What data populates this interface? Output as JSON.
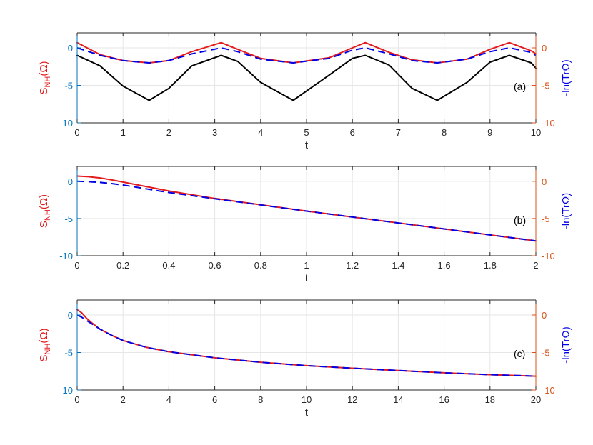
{
  "chart_data": [
    {
      "type": "line",
      "panel_label": "(a)",
      "xlabel": "t",
      "ylabel_left": {
        "main": "S",
        "sub": "NH",
        "tail": "(Ω)"
      },
      "ylabel_right": "-ln(TrΩ)",
      "xlim": [
        0,
        10
      ],
      "ylim": [
        -10,
        2
      ],
      "xticks": [
        "0",
        "1",
        "2",
        "3",
        "4",
        "5",
        "6",
        "7",
        "8",
        "9",
        "10"
      ],
      "xtick_values": [
        0,
        1,
        2,
        3,
        4,
        5,
        6,
        7,
        8,
        9,
        10
      ],
      "yticks_left": [
        "0",
        "-5",
        "-10"
      ],
      "yticks_right": [
        "0",
        "-5",
        "-10"
      ],
      "ytick_values": [
        0,
        -5,
        -10
      ],
      "grid": true,
      "series": [
        {
          "color": "#e41a1c",
          "dash": "solid",
          "x": [
            0,
            0.5,
            1,
            1.57,
            2,
            2.5,
            3.14,
            3.5,
            4,
            4.71,
            5.5,
            6,
            6.28,
            6.8,
            7.3,
            7.85,
            8.5,
            9,
            9.42,
            9.9,
            10
          ],
          "y": [
            0.7,
            -0.9,
            -1.7,
            -2.0,
            -1.7,
            -0.5,
            0.7,
            -0.2,
            -1.4,
            -2.0,
            -1.3,
            0.0,
            0.7,
            -0.6,
            -1.6,
            -2.0,
            -1.5,
            -0.2,
            0.7,
            -0.4,
            -0.8
          ]
        },
        {
          "color": "#0000e6",
          "dash": "dashed",
          "x": [
            0,
            0.5,
            1,
            1.57,
            2,
            2.5,
            3.14,
            3.5,
            4,
            4.71,
            5.5,
            6,
            6.28,
            6.8,
            7.3,
            7.85,
            8.5,
            9,
            9.42,
            9.9,
            10
          ],
          "y": [
            0.0,
            -1.0,
            -1.7,
            -2.0,
            -1.7,
            -0.8,
            0.0,
            -0.5,
            -1.5,
            -2.0,
            -1.4,
            -0.3,
            0.0,
            -0.8,
            -1.7,
            -2.0,
            -1.5,
            -0.5,
            0.0,
            -0.6,
            -1.0
          ]
        },
        {
          "color": "#000000",
          "dash": "solid",
          "x": [
            0,
            0.5,
            1,
            1.57,
            2,
            2.5,
            3.14,
            3.5,
            4,
            4.71,
            5.5,
            6,
            6.28,
            6.8,
            7.3,
            7.85,
            8.5,
            9,
            9.42,
            9.9,
            10
          ],
          "y": [
            -1.0,
            -2.4,
            -5.1,
            -7.0,
            -5.4,
            -2.4,
            -1.0,
            -1.8,
            -4.6,
            -7.0,
            -3.6,
            -1.4,
            -1.0,
            -2.3,
            -5.4,
            -7.0,
            -4.6,
            -1.9,
            -1.0,
            -2.0,
            -2.7
          ]
        }
      ]
    },
    {
      "type": "line",
      "panel_label": "(b)",
      "xlabel": "t",
      "ylabel_left": {
        "main": "S",
        "sub": "NH",
        "tail": "(Ω)"
      },
      "ylabel_right": "-ln(TrΩ)",
      "xlim": [
        0,
        2
      ],
      "ylim": [
        -10,
        2
      ],
      "xticks": [
        "0",
        "0.2",
        "0.4",
        "0.6",
        "0.8",
        "1",
        "1.2",
        "1.4",
        "1.6",
        "1.8",
        "2"
      ],
      "xtick_values": [
        0,
        0.2,
        0.4,
        0.6,
        0.8,
        1,
        1.2,
        1.4,
        1.6,
        1.8,
        2
      ],
      "yticks_left": [
        "0",
        "-5",
        "-10"
      ],
      "yticks_right": [
        "0",
        "-5",
        "-10"
      ],
      "ytick_values": [
        0,
        -5,
        -10
      ],
      "grid": true,
      "series": [
        {
          "color": "#e41a1c",
          "dash": "solid",
          "x": [
            0,
            0.05,
            0.1,
            0.15,
            0.2,
            0.3,
            0.4,
            0.6,
            1.0,
            1.5,
            2.0
          ],
          "y": [
            0.7,
            0.62,
            0.45,
            0.2,
            -0.1,
            -0.7,
            -1.3,
            -2.3,
            -4.0,
            -6.0,
            -8.0
          ]
        },
        {
          "color": "#0000e6",
          "dash": "dashed",
          "x": [
            0,
            0.05,
            0.1,
            0.15,
            0.2,
            0.3,
            0.4,
            0.6,
            1.0,
            1.5,
            2.0
          ],
          "y": [
            0.0,
            -0.05,
            -0.15,
            -0.3,
            -0.5,
            -1.0,
            -1.5,
            -2.35,
            -4.0,
            -6.0,
            -8.0
          ]
        }
      ]
    },
    {
      "type": "line",
      "panel_label": "(c)",
      "xlabel": "t",
      "ylabel_left": {
        "main": "S",
        "sub": "NH",
        "tail": "(Ω)"
      },
      "ylabel_right": "-ln(TrΩ)",
      "xlim": [
        0,
        20
      ],
      "ylim": [
        -10,
        2
      ],
      "xticks": [
        "0",
        "2",
        "4",
        "6",
        "8",
        "10",
        "12",
        "14",
        "16",
        "18",
        "20"
      ],
      "xtick_values": [
        0,
        2,
        4,
        6,
        8,
        10,
        12,
        14,
        16,
        18,
        20
      ],
      "yticks_left": [
        "0",
        "-5",
        "-10"
      ],
      "yticks_right": [
        "0",
        "-5",
        "-10"
      ],
      "ytick_values": [
        0,
        -5,
        -10
      ],
      "grid": true,
      "series": [
        {
          "color": "#e41a1c",
          "dash": "solid",
          "x": [
            0,
            0.2,
            0.4,
            0.7,
            1,
            1.5,
            2,
            3,
            4,
            6,
            8,
            10,
            12,
            14,
            16,
            18,
            20
          ],
          "y": [
            0.7,
            0.3,
            -0.4,
            -1.2,
            -1.9,
            -2.7,
            -3.4,
            -4.3,
            -4.9,
            -5.7,
            -6.3,
            -6.75,
            -7.1,
            -7.4,
            -7.7,
            -7.95,
            -8.15
          ]
        },
        {
          "color": "#0000e6",
          "dash": "dashed",
          "x": [
            0,
            0.2,
            0.4,
            0.7,
            1,
            1.5,
            2,
            3,
            4,
            6,
            8,
            10,
            12,
            14,
            16,
            18,
            20
          ],
          "y": [
            0.0,
            -0.3,
            -0.7,
            -1.3,
            -1.9,
            -2.7,
            -3.4,
            -4.3,
            -4.9,
            -5.7,
            -6.3,
            -6.75,
            -7.1,
            -7.4,
            -7.7,
            -7.95,
            -8.15
          ]
        }
      ]
    }
  ]
}
